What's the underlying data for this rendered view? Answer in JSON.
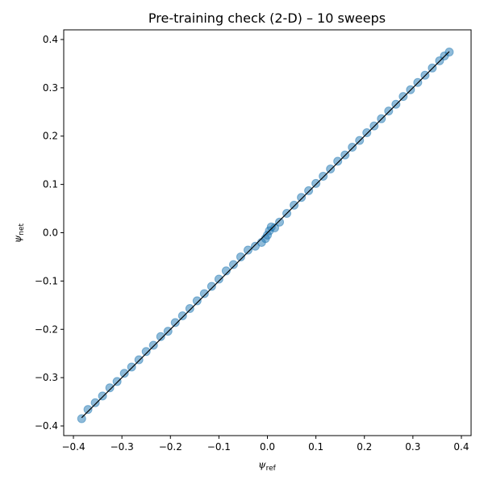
{
  "chart_data": {
    "type": "scatter",
    "title": "Pre-training check (2-D)  – 10 sweeps",
    "xlabel": {
      "symbol": "ψ",
      "subscript": "ref"
    },
    "ylabel": {
      "symbol": "ψ",
      "subscript": "net"
    },
    "xlim": [
      -0.42,
      0.42
    ],
    "ylim": [
      -0.42,
      0.42
    ],
    "xticks": [
      -0.4,
      -0.3,
      -0.2,
      -0.1,
      0.0,
      0.1,
      0.2,
      0.3,
      0.4
    ],
    "yticks": [
      -0.4,
      -0.3,
      -0.2,
      -0.1,
      0.0,
      0.1,
      0.2,
      0.3,
      0.4
    ],
    "xtick_labels": [
      "−0.4",
      "−0.3",
      "−0.2",
      "−0.1",
      "0.0",
      "0.1",
      "0.2",
      "0.3",
      "0.4"
    ],
    "ytick_labels": [
      "−0.4",
      "−0.3",
      "−0.2",
      "−0.1",
      "0.0",
      "0.1",
      "0.2",
      "0.3",
      "0.4"
    ],
    "grid": false,
    "series": [
      {
        "kind": "scatter",
        "color": "#1f77b4",
        "alpha": 0.5,
        "points": [
          [
            -0.383,
            -0.385
          ],
          [
            -0.37,
            -0.366
          ],
          [
            -0.355,
            -0.352
          ],
          [
            -0.34,
            -0.338
          ],
          [
            -0.325,
            -0.321
          ],
          [
            -0.31,
            -0.308
          ],
          [
            -0.295,
            -0.291
          ],
          [
            -0.28,
            -0.278
          ],
          [
            -0.265,
            -0.263
          ],
          [
            -0.25,
            -0.246
          ],
          [
            -0.235,
            -0.233
          ],
          [
            -0.22,
            -0.215
          ],
          [
            -0.205,
            -0.204
          ],
          [
            -0.19,
            -0.186
          ],
          [
            -0.175,
            -0.172
          ],
          [
            -0.16,
            -0.157
          ],
          [
            -0.145,
            -0.141
          ],
          [
            -0.13,
            -0.126
          ],
          [
            -0.115,
            -0.111
          ],
          [
            -0.1,
            -0.096
          ],
          [
            -0.085,
            -0.079
          ],
          [
            -0.07,
            -0.066
          ],
          [
            -0.055,
            -0.05
          ],
          [
            -0.04,
            -0.036
          ],
          [
            -0.025,
            -0.028
          ],
          [
            -0.012,
            -0.02
          ],
          [
            -0.004,
            -0.012
          ],
          [
            0.0,
            -0.005
          ],
          [
            0.004,
            0.004
          ],
          [
            0.008,
            0.012
          ],
          [
            0.015,
            0.01
          ],
          [
            0.025,
            0.022
          ],
          [
            0.04,
            0.04
          ],
          [
            0.055,
            0.057
          ],
          [
            0.07,
            0.073
          ],
          [
            0.085,
            0.087
          ],
          [
            0.1,
            0.102
          ],
          [
            0.115,
            0.117
          ],
          [
            0.13,
            0.132
          ],
          [
            0.145,
            0.148
          ],
          [
            0.16,
            0.161
          ],
          [
            0.175,
            0.177
          ],
          [
            0.19,
            0.191
          ],
          [
            0.205,
            0.207
          ],
          [
            0.22,
            0.221
          ],
          [
            0.235,
            0.236
          ],
          [
            0.25,
            0.252
          ],
          [
            0.265,
            0.266
          ],
          [
            0.28,
            0.282
          ],
          [
            0.295,
            0.296
          ],
          [
            0.31,
            0.311
          ],
          [
            0.325,
            0.326
          ],
          [
            0.34,
            0.341
          ],
          [
            0.355,
            0.356
          ],
          [
            0.365,
            0.366
          ],
          [
            0.375,
            0.374
          ]
        ]
      },
      {
        "kind": "line",
        "color": "#000000",
        "x": [
          -0.383,
          0.375
        ],
        "y": [
          -0.383,
          0.375
        ]
      }
    ]
  }
}
